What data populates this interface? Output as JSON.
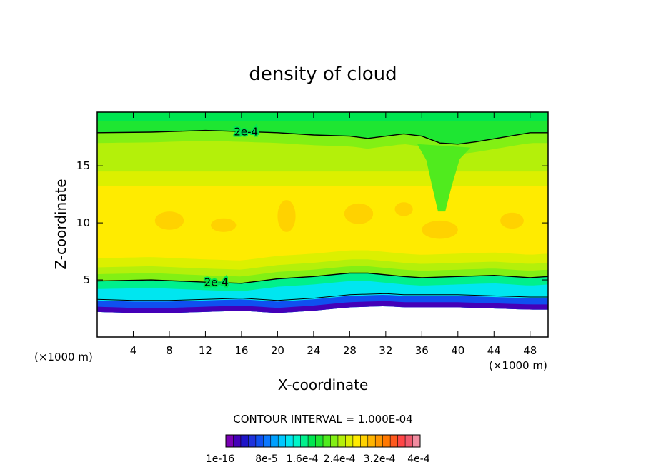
{
  "chart_data": {
    "type": "contour",
    "title": "density of cloud",
    "xlabel": "X-coordinate",
    "ylabel": "Z-coordinate",
    "x_unit_label": "(×1000 m)",
    "z_unit_label": "(×1000 m)",
    "xlim": [
      0,
      50
    ],
    "ylim": [
      0,
      19.7
    ],
    "x_ticks": [
      4,
      8,
      12,
      16,
      20,
      24,
      28,
      32,
      36,
      40,
      44,
      48
    ],
    "y_ticks": [
      5,
      10,
      15
    ],
    "contour_interval_text": "CONTOUR INTERVAL = 1.000E-04",
    "contour_label": "2e-4",
    "colorbar": {
      "labels": [
        "1e-16",
        "8e-5",
        "1.6e-4",
        "2.4e-4",
        "3.2e-4",
        "4e-4"
      ],
      "colors": [
        "#7a00b4",
        "#4400b8",
        "#1e14c8",
        "#1e32dc",
        "#0f50f0",
        "#0a78ff",
        "#00a0ff",
        "#00c8ff",
        "#00e6f0",
        "#00f5c8",
        "#00f08c",
        "#00e650",
        "#1ee632",
        "#50eb1e",
        "#82f014",
        "#b4f00a",
        "#dcf000",
        "#ffeb00",
        "#ffd200",
        "#ffb400",
        "#ff9600",
        "#ff7800",
        "#ff5a1e",
        "#ff4646",
        "#f05a6e",
        "#f08ca0"
      ]
    },
    "annotations": [
      "2e-4",
      "2e-4"
    ],
    "upper_2e4_contour": [
      [
        0,
        17.9
      ],
      [
        6,
        17.95
      ],
      [
        12,
        18.1
      ],
      [
        16,
        18.0
      ],
      [
        20,
        17.9
      ],
      [
        24,
        17.7
      ],
      [
        28,
        17.6
      ],
      [
        30,
        17.4
      ],
      [
        34,
        17.8
      ],
      [
        36,
        17.6
      ],
      [
        38,
        17.0
      ],
      [
        40,
        16.9
      ],
      [
        42,
        17.1
      ],
      [
        45,
        17.5
      ],
      [
        48,
        17.9
      ],
      [
        50,
        17.9
      ]
    ],
    "lower_2e4_contour": [
      [
        0,
        4.9
      ],
      [
        6,
        5.0
      ],
      [
        12,
        4.8
      ],
      [
        16,
        4.7
      ],
      [
        20,
        5.1
      ],
      [
        24,
        5.3
      ],
      [
        28,
        5.6
      ],
      [
        30,
        5.6
      ],
      [
        34,
        5.3
      ],
      [
        36,
        5.2
      ],
      [
        40,
        5.3
      ],
      [
        44,
        5.4
      ],
      [
        48,
        5.2
      ],
      [
        50,
        5.3
      ]
    ],
    "cloud_base_profile": [
      [
        0,
        2.2
      ],
      [
        4,
        2.1
      ],
      [
        8,
        2.1
      ],
      [
        12,
        2.2
      ],
      [
        16,
        2.3
      ],
      [
        20,
        2.1
      ],
      [
        24,
        2.3
      ],
      [
        28,
        2.6
      ],
      [
        32,
        2.7
      ],
      [
        34,
        2.6
      ],
      [
        36,
        2.6
      ],
      [
        40,
        2.6
      ],
      [
        44,
        2.5
      ],
      [
        48,
        2.4
      ],
      [
        50,
        2.4
      ]
    ],
    "cloud_top_km": 19.7
  }
}
